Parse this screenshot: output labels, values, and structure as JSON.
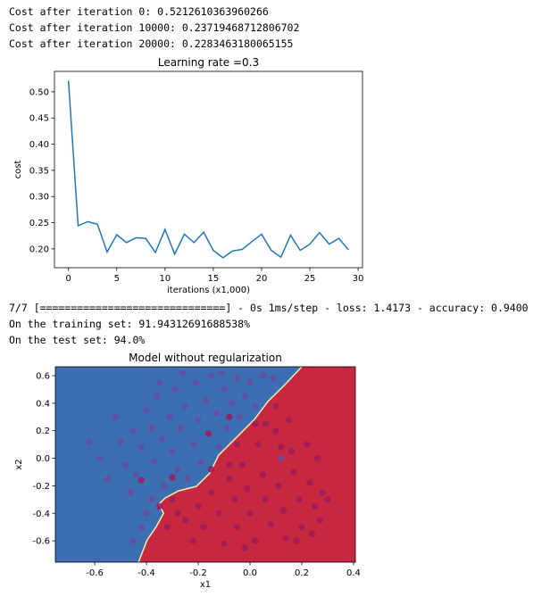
{
  "outputs_top": [
    "Cost after iteration 0: 0.5212610363960266",
    "Cost after iteration 10000: 0.23719468712806702",
    "Cost after iteration 20000: 0.2283463180065155"
  ],
  "outputs_middle": [
    "7/7 [==============================] - 0s 1ms/step - loss: 1.4173 - accuracy: 0.9400",
    "On the training set: 91.94312691688538%",
    "On the test set: 94.0%"
  ],
  "chart_data": [
    {
      "type": "line",
      "title": "Learning rate =0.3",
      "xlabel": "iterations (x1,000)",
      "ylabel": "cost",
      "x": [
        0,
        1,
        2,
        3,
        4,
        5,
        6,
        7,
        8,
        9,
        10,
        11,
        12,
        13,
        14,
        15,
        16,
        17,
        18,
        19,
        20,
        21,
        22,
        23,
        24,
        25,
        26,
        27,
        28,
        29
      ],
      "series": [
        {
          "color": "#1f77b4",
          "values": [
            0.521,
            0.244,
            0.252,
            0.247,
            0.194,
            0.227,
            0.212,
            0.221,
            0.22,
            0.193,
            0.237,
            0.19,
            0.228,
            0.212,
            0.232,
            0.197,
            0.183,
            0.196,
            0.199,
            0.214,
            0.228,
            0.197,
            0.184,
            0.226,
            0.197,
            0.209,
            0.231,
            0.209,
            0.22,
            0.198
          ]
        }
      ],
      "xlim": [
        -1.45,
        30.45
      ],
      "ylim": [
        0.164,
        0.539
      ],
      "xticks": [
        0,
        5,
        10,
        15,
        20,
        25,
        30
      ],
      "yticks": [
        {
          "value": 0.2,
          "label": "0.20"
        },
        0.25,
        {
          "value": 0.3,
          "label": "0.30"
        },
        0.35,
        {
          "value": 0.4,
          "label": "0.40"
        },
        0.45,
        {
          "value": 0.5,
          "label": "0.50"
        }
      ]
    },
    {
      "type": "scatter",
      "title": "Model without regularization",
      "xlabel": "x1",
      "ylabel": "x2",
      "region_colors": [
        "#3b6fb2",
        "#c7283f"
      ],
      "decision_boundary": {
        "x": [
          0.2,
          0.138,
          0.069,
          0.017,
          -0.052,
          -0.121,
          -0.155,
          -0.207,
          -0.276,
          -0.328,
          -0.352,
          -0.334,
          -0.362,
          -0.397,
          -0.431
        ],
        "y": [
          0.665,
          0.541,
          0.412,
          0.282,
          0.152,
          0.023,
          -0.107,
          -0.204,
          -0.237,
          -0.289,
          -0.334,
          -0.399,
          -0.496,
          -0.593,
          -0.755
        ]
      },
      "series": [
        {
          "color": "#6a4ca0",
          "x": [
            -0.62,
            -0.52,
            -0.5,
            -0.48,
            -0.45,
            -0.44,
            -0.42,
            -0.4,
            -0.38,
            -0.37,
            -0.36,
            -0.34,
            -0.33,
            -0.31,
            -0.3,
            -0.29,
            -0.28,
            -0.27,
            -0.25,
            -0.24,
            -0.22,
            -0.21,
            -0.2,
            -0.19,
            -0.17,
            -0.16,
            -0.15,
            -0.13,
            -0.12,
            -0.1,
            -0.09,
            -0.07,
            -0.05,
            -0.04,
            -0.02,
            0.0,
            0.02,
            0.05,
            -0.55,
            -0.46,
            -0.4,
            -0.42,
            -0.38,
            -0.58,
            -0.35,
            -0.26,
            -0.11,
            0.09,
            -0.45,
            0.12
          ],
          "y": [
            0.12,
            0.3,
            0.12,
            -0.05,
            0.2,
            -0.12,
            0.08,
            0.35,
            0.22,
            -0.02,
            0.45,
            0.14,
            -0.2,
            0.3,
            0.05,
            0.5,
            -0.08,
            0.22,
            0.38,
            -0.15,
            0.1,
            0.55,
            0.28,
            -0.03,
            0.42,
            0.18,
            0.6,
            0.33,
            0.08,
            0.5,
            0.22,
            0.4,
            0.58,
            0.3,
            0.45,
            0.55,
            0.38,
            0.6,
            -0.15,
            -0.25,
            -0.4,
            -0.5,
            -0.3,
            0.0,
            0.55,
            0.62,
            0.62,
            0.58,
            -0.6,
            0.0
          ]
        },
        {
          "color": "#9c1a5b",
          "x": [
            -0.3,
            -0.25,
            -0.22,
            -0.2,
            -0.18,
            -0.15,
            -0.12,
            -0.1,
            -0.08,
            -0.06,
            -0.05,
            -0.03,
            -0.01,
            0.0,
            0.02,
            0.03,
            0.05,
            0.06,
            0.08,
            0.1,
            0.11,
            0.13,
            0.14,
            0.16,
            0.17,
            0.19,
            0.2,
            0.22,
            0.23,
            0.25,
            0.26,
            0.28,
            0.3,
            0.27,
            0.24,
            0.06,
            0.1,
            0.02,
            -0.08,
            -0.15,
            -0.28,
            -0.35,
            -0.32,
            -0.05,
            0.15,
            0.18,
            -0.02,
            0.12,
            -0.42,
            -0.3,
            -0.16,
            -0.08
          ],
          "y": [
            -0.3,
            -0.45,
            -0.6,
            -0.35,
            -0.5,
            -0.25,
            -0.4,
            -0.62,
            -0.15,
            -0.3,
            -0.5,
            -0.05,
            -0.22,
            -0.4,
            -0.6,
            0.1,
            -0.12,
            -0.3,
            -0.48,
            0.2,
            -0.2,
            -0.38,
            -0.58,
            0.05,
            -0.1,
            -0.3,
            -0.5,
            0.1,
            -0.18,
            -0.35,
            0.0,
            -0.25,
            -0.3,
            -0.45,
            -0.55,
            0.25,
            0.38,
            0.25,
            -0.05,
            -0.08,
            -0.4,
            -0.35,
            -0.5,
            0.1,
            0.28,
            -0.6,
            -0.65,
            0.08,
            -0.16,
            -0.14,
            0.18,
            0.3
          ]
        }
      ],
      "xlim": [
        -0.752,
        0.407
      ],
      "ylim": [
        -0.755,
        0.665
      ],
      "xticks": [
        -0.6,
        -0.4,
        -0.2,
        {
          "value": 0,
          "label": "0.0"
        },
        0.2,
        0.4
      ],
      "yticks": [
        -0.6,
        -0.4,
        -0.2,
        {
          "value": 0,
          "label": "0.0"
        },
        0.2,
        0.4,
        0.6
      ]
    }
  ]
}
